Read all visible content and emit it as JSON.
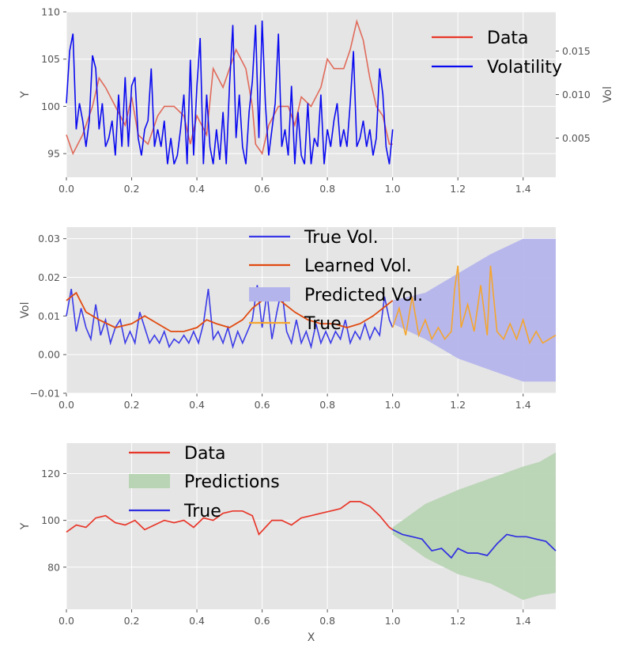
{
  "panels": [
    {
      "id": "price-volatility",
      "ylabel": "Y",
      "ylabel_right": "Vol",
      "xlim": [
        0,
        1.5
      ],
      "ylim": [
        92.5,
        110
      ],
      "ylim_right": [
        0.0005,
        0.0195
      ],
      "xticks": [
        "0.0",
        "0.2",
        "0.4",
        "0.6",
        "0.8",
        "1.0",
        "1.2",
        "1.4"
      ],
      "yticks": [
        "95",
        "100",
        "105",
        "110"
      ],
      "yticks_right": [
        "0.005",
        "0.010",
        "0.015"
      ],
      "legend": [
        "Data",
        "Volatility"
      ],
      "legend_position": "upper-right"
    },
    {
      "id": "volatility-forecast",
      "ylabel": "Vol",
      "xlim": [
        0,
        1.5
      ],
      "ylim": [
        -0.01,
        0.033
      ],
      "xticks": [
        "0.0",
        "0.2",
        "0.4",
        "0.6",
        "0.8",
        "1.0",
        "1.2",
        "1.4"
      ],
      "yticks": [
        "−0.01",
        "0.00",
        "0.01",
        "0.02",
        "0.03"
      ],
      "legend": [
        "True Vol.",
        "Learned Vol.",
        "Predicted Vol.",
        "True"
      ],
      "legend_position": "upper-center"
    },
    {
      "id": "price-forecast",
      "xlabel": "X",
      "ylabel": "Y",
      "xlim": [
        0,
        1.5
      ],
      "ylim": [
        62,
        133
      ],
      "xticks": [
        "0.0",
        "0.2",
        "0.4",
        "0.6",
        "0.8",
        "1.0",
        "1.2",
        "1.4"
      ],
      "yticks": [
        "80",
        "100",
        "120"
      ],
      "legend": [
        "Data",
        "Predictions",
        "True"
      ],
      "legend_position": "upper-left"
    }
  ],
  "colors": {
    "data": "#e8372a",
    "data_faded": "#e06a5a",
    "volatility": "#0a0af0",
    "true_vol": "#3a3ae8",
    "learned_vol": "#e04a10",
    "predicted_band": "#b4b4ec",
    "true_future": "#f5a52e",
    "predictions_band": "#b8d4b4",
    "true_price": "#3030e0",
    "plot_bg": "#e5e5e5",
    "grid": "#ffffff"
  },
  "chart_data": [
    {
      "type": "line",
      "panel": "price-volatility",
      "series": [
        {
          "name": "Data",
          "axis": "left",
          "x": [
            0,
            0.02,
            0.05,
            0.08,
            0.1,
            0.12,
            0.15,
            0.18,
            0.2,
            0.22,
            0.25,
            0.28,
            0.3,
            0.33,
            0.36,
            0.38,
            0.4,
            0.43,
            0.45,
            0.48,
            0.5,
            0.52,
            0.55,
            0.57,
            0.58,
            0.6,
            0.62,
            0.65,
            0.68,
            0.7,
            0.72,
            0.75,
            0.78,
            0.8,
            0.82,
            0.85,
            0.87,
            0.89,
            0.91,
            0.93,
            0.95,
            0.97,
            0.99,
            1.0
          ],
          "values": [
            97,
            95,
            97,
            100,
            103,
            102,
            100,
            98,
            101,
            97,
            96,
            99,
            100,
            100,
            99,
            96,
            99,
            97,
            104,
            102,
            104,
            106,
            104,
            100,
            96,
            95,
            98,
            100,
            100,
            98,
            101,
            100,
            102,
            105,
            104,
            104,
            106,
            109,
            107,
            103,
            100,
            99,
            96,
            96
          ]
        },
        {
          "name": "Volatility",
          "axis": "right",
          "x": [
            0,
            0.01,
            0.02,
            0.03,
            0.04,
            0.05,
            0.06,
            0.07,
            0.08,
            0.09,
            0.1,
            0.11,
            0.12,
            0.13,
            0.14,
            0.15,
            0.16,
            0.17,
            0.18,
            0.19,
            0.2,
            0.21,
            0.22,
            0.23,
            0.24,
            0.25,
            0.26,
            0.27,
            0.28,
            0.29,
            0.3,
            0.31,
            0.32,
            0.33,
            0.34,
            0.35,
            0.36,
            0.37,
            0.38,
            0.39,
            0.4,
            0.41,
            0.42,
            0.43,
            0.44,
            0.45,
            0.46,
            0.47,
            0.48,
            0.49,
            0.5,
            0.51,
            0.52,
            0.53,
            0.54,
            0.55,
            0.56,
            0.57,
            0.58,
            0.59,
            0.6,
            0.61,
            0.62,
            0.63,
            0.64,
            0.65,
            0.66,
            0.67,
            0.68,
            0.69,
            0.7,
            0.71,
            0.72,
            0.73,
            0.74,
            0.75,
            0.76,
            0.77,
            0.78,
            0.79,
            0.8,
            0.81,
            0.82,
            0.83,
            0.84,
            0.85,
            0.86,
            0.87,
            0.88,
            0.89,
            0.9,
            0.91,
            0.92,
            0.93,
            0.94,
            0.95,
            0.96,
            0.97,
            0.98,
            0.99,
            1.0
          ],
          "values": [
            0.009,
            0.015,
            0.017,
            0.006,
            0.009,
            0.007,
            0.004,
            0.007,
            0.0145,
            0.013,
            0.006,
            0.009,
            0.004,
            0.005,
            0.007,
            0.003,
            0.01,
            0.004,
            0.012,
            0.004,
            0.011,
            0.012,
            0.005,
            0.003,
            0.006,
            0.007,
            0.013,
            0.004,
            0.006,
            0.004,
            0.007,
            0.002,
            0.005,
            0.002,
            0.003,
            0.006,
            0.01,
            0.002,
            0.014,
            0.003,
            0.011,
            0.0165,
            0.002,
            0.01,
            0.004,
            0.002,
            0.006,
            0.0025,
            0.008,
            0.002,
            0.011,
            0.018,
            0.005,
            0.01,
            0.004,
            0.002,
            0.008,
            0.0115,
            0.018,
            0.005,
            0.0185,
            0.009,
            0.003,
            0.006,
            0.009,
            0.017,
            0.004,
            0.006,
            0.003,
            0.011,
            0.002,
            0.008,
            0.003,
            0.002,
            0.009,
            0.002,
            0.005,
            0.004,
            0.01,
            0.002,
            0.006,
            0.004,
            0.007,
            0.009,
            0.004,
            0.006,
            0.004,
            0.009,
            0.015,
            0.004,
            0.005,
            0.007,
            0.004,
            0.006,
            0.003,
            0.005,
            0.013,
            0.01,
            0.004,
            0.002,
            0.006
          ]
        }
      ]
    },
    {
      "type": "line",
      "panel": "volatility-forecast",
      "series": [
        {
          "name": "True Vol.",
          "x": [
            0,
            0.015,
            0.03,
            0.045,
            0.06,
            0.075,
            0.09,
            0.105,
            0.12,
            0.135,
            0.15,
            0.165,
            0.18,
            0.195,
            0.21,
            0.225,
            0.24,
            0.255,
            0.27,
            0.285,
            0.3,
            0.315,
            0.33,
            0.345,
            0.36,
            0.375,
            0.39,
            0.405,
            0.42,
            0.435,
            0.45,
            0.465,
            0.48,
            0.495,
            0.51,
            0.525,
            0.54,
            0.555,
            0.57,
            0.585,
            0.6,
            0.615,
            0.63,
            0.645,
            0.66,
            0.675,
            0.69,
            0.705,
            0.72,
            0.735,
            0.75,
            0.765,
            0.78,
            0.795,
            0.81,
            0.825,
            0.84,
            0.855,
            0.87,
            0.885,
            0.9,
            0.915,
            0.93,
            0.945,
            0.96,
            0.975,
            0.99,
            1.0
          ],
          "values": [
            0.01,
            0.017,
            0.006,
            0.012,
            0.007,
            0.004,
            0.013,
            0.005,
            0.009,
            0.003,
            0.007,
            0.009,
            0.003,
            0.006,
            0.003,
            0.011,
            0.007,
            0.003,
            0.005,
            0.003,
            0.006,
            0.002,
            0.004,
            0.003,
            0.005,
            0.003,
            0.006,
            0.003,
            0.008,
            0.017,
            0.004,
            0.006,
            0.003,
            0.007,
            0.002,
            0.006,
            0.003,
            0.006,
            0.009,
            0.018,
            0.007,
            0.016,
            0.004,
            0.011,
            0.017,
            0.006,
            0.003,
            0.009,
            0.003,
            0.006,
            0.002,
            0.008,
            0.003,
            0.006,
            0.003,
            0.006,
            0.004,
            0.009,
            0.003,
            0.006,
            0.004,
            0.008,
            0.004,
            0.007,
            0.005,
            0.015,
            0.009,
            0.007
          ]
        },
        {
          "name": "Learned Vol.",
          "x": [
            0,
            0.03,
            0.06,
            0.1,
            0.15,
            0.2,
            0.24,
            0.28,
            0.32,
            0.36,
            0.4,
            0.43,
            0.46,
            0.5,
            0.54,
            0.57,
            0.6,
            0.64,
            0.67,
            0.7,
            0.74,
            0.78,
            0.82,
            0.86,
            0.9,
            0.94,
            0.97,
            1.0
          ],
          "values": [
            0.014,
            0.016,
            0.011,
            0.009,
            0.007,
            0.008,
            0.01,
            0.008,
            0.006,
            0.006,
            0.007,
            0.009,
            0.008,
            0.007,
            0.009,
            0.012,
            0.014,
            0.015,
            0.013,
            0.011,
            0.009,
            0.008,
            0.008,
            0.007,
            0.008,
            0.01,
            0.012,
            0.014
          ]
        },
        {
          "name": "Predicted Vol.",
          "type": "area",
          "x": [
            1.0,
            1.1,
            1.2,
            1.3,
            1.4,
            1.5
          ],
          "upper": [
            0.014,
            0.016,
            0.021,
            0.026,
            0.03,
            0.03
          ],
          "lower": [
            0.008,
            0.004,
            -0.001,
            -0.004,
            -0.007,
            -0.007
          ]
        },
        {
          "name": "True",
          "x": [
            1.0,
            1.02,
            1.04,
            1.06,
            1.08,
            1.1,
            1.12,
            1.14,
            1.16,
            1.18,
            1.19,
            1.2,
            1.21,
            1.23,
            1.25,
            1.27,
            1.29,
            1.3,
            1.32,
            1.34,
            1.36,
            1.38,
            1.4,
            1.42,
            1.44,
            1.46,
            1.48,
            1.5
          ],
          "values": [
            0.007,
            0.012,
            0.005,
            0.015,
            0.005,
            0.009,
            0.004,
            0.007,
            0.004,
            0.006,
            0.017,
            0.023,
            0.007,
            0.013,
            0.006,
            0.018,
            0.005,
            0.023,
            0.006,
            0.004,
            0.008,
            0.004,
            0.009,
            0.003,
            0.006,
            0.003,
            0.004,
            0.005
          ]
        }
      ]
    },
    {
      "type": "line",
      "panel": "price-forecast",
      "series": [
        {
          "name": "Data",
          "x": [
            0,
            0.03,
            0.06,
            0.09,
            0.12,
            0.15,
            0.18,
            0.21,
            0.24,
            0.27,
            0.3,
            0.33,
            0.36,
            0.39,
            0.42,
            0.45,
            0.48,
            0.51,
            0.54,
            0.57,
            0.59,
            0.61,
            0.63,
            0.66,
            0.69,
            0.72,
            0.75,
            0.78,
            0.81,
            0.84,
            0.87,
            0.9,
            0.93,
            0.96,
            0.99,
            1.0
          ],
          "values": [
            95,
            98,
            97,
            101,
            102,
            99,
            98,
            100,
            96,
            98,
            100,
            99,
            100,
            97,
            101,
            100,
            103,
            104,
            104,
            102,
            94,
            97,
            100,
            100,
            98,
            101,
            102,
            103,
            104,
            105,
            108,
            108,
            106,
            102,
            97,
            96
          ]
        },
        {
          "name": "Predictions",
          "type": "area",
          "x": [
            1.0,
            1.1,
            1.2,
            1.3,
            1.4,
            1.45,
            1.5
          ],
          "upper": [
            97,
            107,
            113,
            118,
            123,
            125,
            129
          ],
          "lower": [
            94,
            84,
            77,
            73,
            66,
            68,
            69
          ]
        },
        {
          "name": "True",
          "x": [
            1.0,
            1.03,
            1.06,
            1.09,
            1.12,
            1.15,
            1.18,
            1.2,
            1.23,
            1.26,
            1.29,
            1.32,
            1.35,
            1.38,
            1.41,
            1.44,
            1.47,
            1.5
          ],
          "values": [
            96,
            94,
            93,
            92,
            87,
            88,
            84,
            88,
            86,
            86,
            85,
            90,
            94,
            93,
            93,
            92,
            91,
            87
          ]
        }
      ]
    }
  ]
}
